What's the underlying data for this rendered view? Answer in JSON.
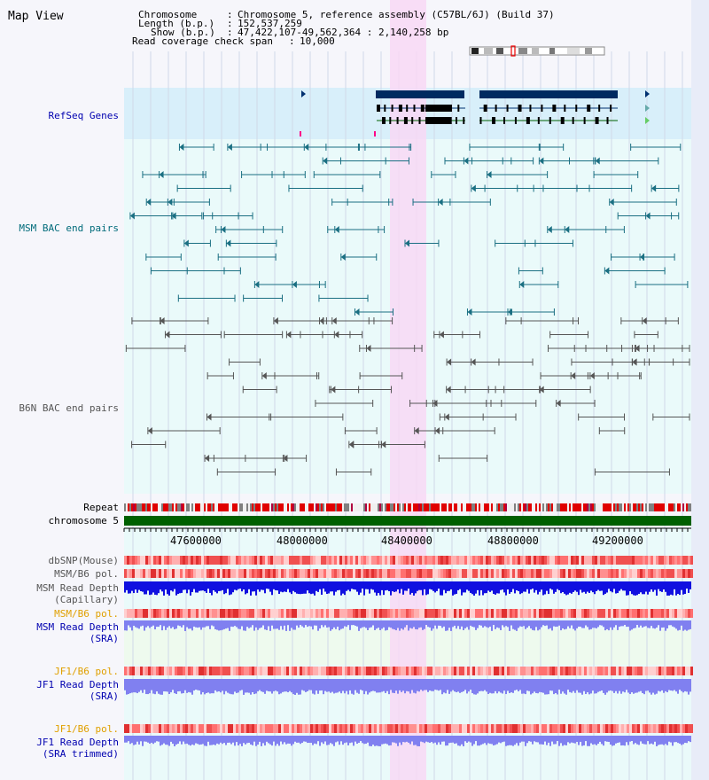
{
  "map_title": "Map View",
  "header": {
    "chromosome_label": "Chromosome",
    "chromosome_value": "Chromosome 5, reference assembly (C57BL/6J) (Build 37)",
    "length_label": "Length (b.p.)",
    "length_value": "152,537,259",
    "show_label": "Show (b.p.)",
    "show_value": "47,422,107-49,562,364 : 2,140,258 bp",
    "coverage_label": "Read coverage check span",
    "coverage_value": "10,000"
  },
  "tracks": {
    "refseq": "RefSeq Genes",
    "msm_bac": "MSM BAC end pairs",
    "b6n_bac": "B6N BAC end pairs",
    "repeat": "Repeat",
    "chromosome": "chromosome 5",
    "dbsnp": "dbSNP(Mouse)",
    "msm_b6_pol": "MSM/B6 pol.",
    "msm_read_depth_cap": "MSM Read Depth",
    "msm_read_depth_cap_sub": "(Capillary)",
    "msm_b6_pol_sra": "MSM/B6 pol.",
    "msm_read_depth_sra": "MSM Read Depth",
    "msm_read_depth_sra_sub": "(SRA)",
    "jf1_b6_pol": "JF1/B6 pol.",
    "jf1_read_depth": "JF1 Read Depth",
    "jf1_read_depth_sub": "(SRA)",
    "jf1_b6_pol_trim": "JF1/B6 pol.",
    "jf1_read_depth_trim": "JF1 Read Depth",
    "jf1_read_depth_trim_sub": "(SRA trimmed)"
  },
  "axis": {
    "ticks": [
      "47600000",
      "48000000",
      "48400000",
      "48800000",
      "49200000"
    ]
  },
  "colors": {
    "refseq_bg": "#d8effa",
    "bac_bg": "#eafafa",
    "highlight": "#f8d8f4",
    "msm_teal": "#1a6f82",
    "b6n_grey": "#555555",
    "chrom_green": "#006000",
    "depth_blue": "#1010e0",
    "depth_lavender": "#8080f0"
  }
}
